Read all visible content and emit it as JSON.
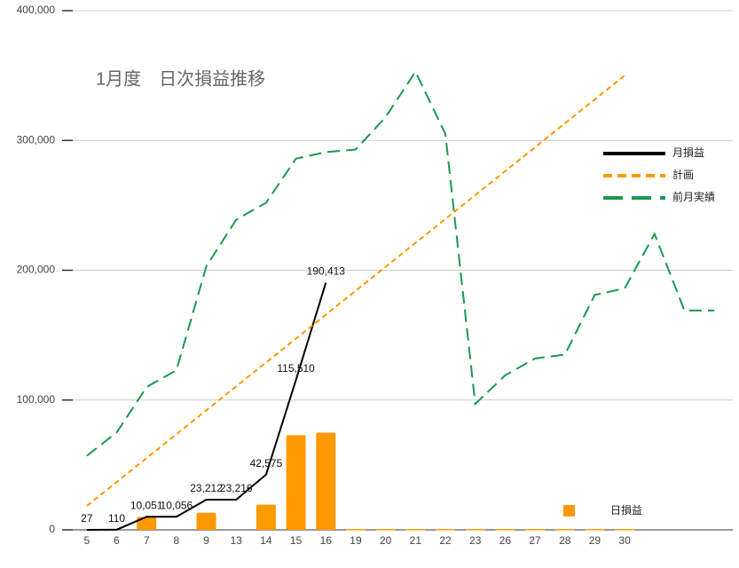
{
  "chart_data": {
    "type": "combo",
    "title": "1月度　日次損益推移",
    "categories": [
      "5",
      "6",
      "7",
      "8",
      "9",
      "13",
      "14",
      "15",
      "16",
      "19",
      "20",
      "21",
      "22",
      "23",
      "26",
      "27",
      "28",
      "29",
      "30",
      null,
      null,
      null
    ],
    "ylim": [
      0,
      400000
    ],
    "yticks": [
      {
        "value": 0,
        "label": "0"
      },
      {
        "value": 100000,
        "label": "100,000"
      },
      {
        "value": 200000,
        "label": "200,000"
      },
      {
        "value": 300000,
        "label": "300,000"
      },
      {
        "value": 400000,
        "label": "400,000"
      }
    ],
    "grid": true,
    "legend_position": "right",
    "series": [
      {
        "name": "日損益",
        "type": "bar",
        "color": "#ff9900",
        "values": [
          27,
          83,
          9941,
          5,
          13156,
          4,
          19359,
          72935,
          74903,
          0,
          0,
          0,
          0,
          0,
          0,
          0,
          0,
          0,
          0,
          null,
          null,
          null
        ]
      },
      {
        "name": "月損益",
        "type": "line",
        "color": "#000000",
        "dash": "solid",
        "values": [
          27,
          110,
          10051,
          10056,
          23212,
          23216,
          42575,
          115510,
          190413,
          null,
          null,
          null,
          null,
          null,
          null,
          null,
          null,
          null,
          null,
          null,
          null,
          null
        ],
        "value_labels": [
          "27",
          "110",
          "10,051",
          "10,056",
          "23,212",
          "23,216",
          "42,575",
          "115,510",
          "190,413",
          null,
          null,
          null,
          null,
          null,
          null,
          null,
          null,
          null,
          null,
          null,
          null,
          null
        ]
      },
      {
        "name": "計画",
        "type": "line",
        "color": "#ff9900",
        "dash": "short",
        "values": [
          18421,
          36842,
          55263,
          73684,
          92105,
          110526,
          128947,
          147368,
          165789,
          184211,
          202632,
          221053,
          239474,
          257895,
          276316,
          294737,
          313158,
          331579,
          350000,
          null,
          null,
          null
        ]
      },
      {
        "name": "前月実績",
        "type": "line",
        "color": "#1a9850",
        "dash": "long",
        "values": [
          57000,
          75000,
          110000,
          123000,
          203000,
          239000,
          252000,
          286000,
          291000,
          293000,
          318000,
          353000,
          305000,
          97000,
          119000,
          132000,
          135000,
          181000,
          186000,
          228000,
          169000,
          169000
        ]
      }
    ]
  }
}
